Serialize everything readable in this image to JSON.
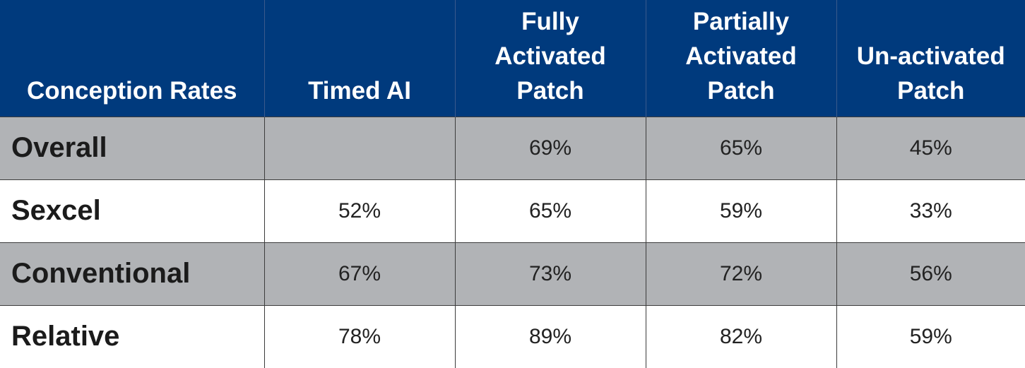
{
  "table": {
    "headers": [
      [
        "Conception Rates"
      ],
      [
        "Timed AI"
      ],
      [
        "Fully",
        "Activated",
        "Patch"
      ],
      [
        "Partially",
        "Activated",
        "Patch"
      ],
      [
        "Un-activated",
        "Patch"
      ]
    ],
    "rows": [
      {
        "label": "Overall",
        "values": [
          "",
          "69%",
          "65%",
          "45%"
        ]
      },
      {
        "label": "Sexcel",
        "values": [
          "52%",
          "65%",
          "59%",
          "33%"
        ]
      },
      {
        "label": "Conventional",
        "values": [
          "67%",
          "73%",
          "72%",
          "56%"
        ]
      },
      {
        "label": "Relative",
        "values": [
          "78%",
          "89%",
          "82%",
          "59%"
        ]
      }
    ]
  },
  "colors": {
    "header_bg": "#003A7D",
    "header_text": "#FFFFFF",
    "shaded_row_bg": "#B1B3B6",
    "plain_row_bg": "#FFFFFF"
  },
  "chart_data": {
    "type": "table",
    "columns": [
      "Conception Rates",
      "Timed AI",
      "Fully Activated Patch",
      "Partially Activated Patch",
      "Un-activated Patch"
    ],
    "rows": [
      [
        "Overall",
        null,
        69,
        65,
        45
      ],
      [
        "Sexcel",
        52,
        65,
        59,
        33
      ],
      [
        "Conventional",
        67,
        73,
        72,
        56
      ],
      [
        "Relative",
        78,
        89,
        82,
        59
      ]
    ],
    "unit": "%"
  }
}
